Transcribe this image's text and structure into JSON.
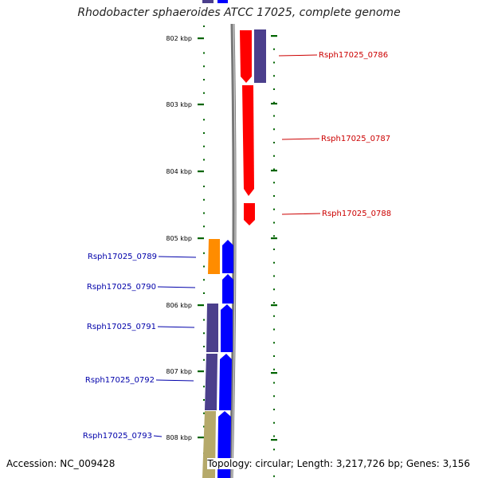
{
  "title": "Rhodobacter sphaeroides ATCC 17025, complete genome",
  "footer": {
    "accession": "Accession: NC_009428",
    "topology": "Topology: circular; Length: 3,217,726 bp; Genes: 3,156"
  },
  "colors": {
    "backbone": "#777777",
    "tick": "#006400",
    "right_label": "#cc0000",
    "left_label": "#0000aa",
    "red": "#ff0000",
    "blue": "#0000ff",
    "purple": "#4b3f8c",
    "orange": "#ff8c00",
    "khaki": "#b5a96a"
  },
  "chart_data": {
    "type": "genome-map",
    "scale_labels": [
      "802 kbp",
      "803 kbp",
      "804 kbp",
      "805 kbp",
      "806 kbp",
      "807 kbp",
      "808 kbp"
    ],
    "right_labels": [
      "Rsph17025_0786",
      "Rsph17025_0787",
      "Rsph17025_0788"
    ],
    "left_labels": [
      "Rsph17025_0789",
      "Rsph17025_0790",
      "Rsph17025_0791",
      "Rsph17025_0792",
      "Rsph17025_0793"
    ]
  }
}
